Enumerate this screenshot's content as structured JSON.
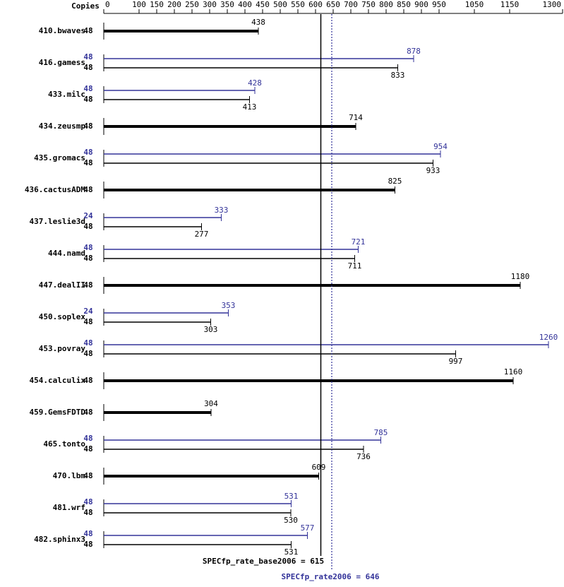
{
  "chart_data": {
    "type": "bar",
    "copies_label": "Copies",
    "categories": [
      "410.bwaves",
      "416.gamess",
      "433.milc",
      "434.zeusmp",
      "435.gromacs",
      "436.cactusADM",
      "437.leslie3d",
      "444.namd",
      "447.dealII",
      "450.soplex",
      "453.povray",
      "454.calculix",
      "459.GemsFDTD",
      "465.tonto",
      "470.lbm",
      "481.wrf",
      "482.sphinx3"
    ],
    "series": [
      {
        "color": "#333399",
        "values": [
          null,
          878,
          428,
          null,
          954,
          null,
          333,
          721,
          null,
          353,
          1260,
          null,
          null,
          785,
          null,
          531,
          577
        ],
        "copies": [
          null,
          48,
          48,
          null,
          48,
          null,
          24,
          48,
          null,
          24,
          48,
          null,
          null,
          48,
          null,
          48,
          48
        ]
      },
      {
        "color": "#000000",
        "values": [
          438,
          833,
          413,
          714,
          933,
          825,
          277,
          711,
          1180,
          303,
          997,
          1160,
          304,
          736,
          609,
          530,
          531
        ],
        "copies": [
          48,
          48,
          48,
          48,
          48,
          48,
          48,
          48,
          48,
          48,
          48,
          48,
          48,
          48,
          48,
          48,
          48
        ]
      }
    ],
    "xlim": [
      0,
      1300
    ],
    "xticks": [
      0,
      100,
      150,
      200,
      250,
      300,
      350,
      400,
      450,
      500,
      550,
      600,
      650,
      700,
      750,
      800,
      850,
      900,
      950,
      1050,
      1150,
      1300
    ],
    "reference_lines": [
      {
        "value": 615,
        "label": "SPECfp_rate_base2006 = 615",
        "color": "#000000",
        "dashed": false
      },
      {
        "value": 646,
        "label": "SPECfp_rate2006 = 646",
        "color": "#333399",
        "dashed": true
      }
    ]
  }
}
